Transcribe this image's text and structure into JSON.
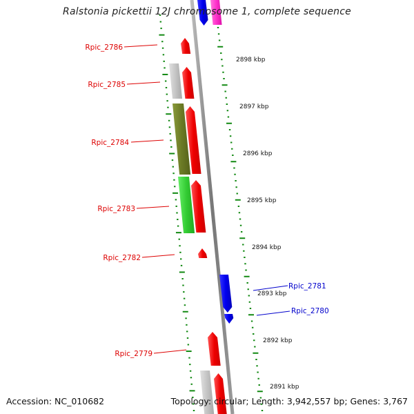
{
  "title": "Ralstonia pickettii 12J chromosome 1, complete sequence",
  "accession": "Accession: NC_010682",
  "summary": "Topology: circular; Length: 3,942,557 bp; Genes: 3,767",
  "colors": {
    "forward_gene": "#ee0000",
    "reverse_gene": "#0000ee",
    "pink_gene": "#ff33cc",
    "grey_gene": "#c0c0c0",
    "olive_gene": "#6b7a25",
    "green_gene": "#33cc33",
    "tick": "#118811",
    "backbone": "#888888",
    "label_red": "#dd0000",
    "label_blue": "#0000cc"
  },
  "kbp_ticks": [
    {
      "label": "2898 kbp"
    },
    {
      "label": "2897 kbp"
    },
    {
      "label": "2896 kbp"
    },
    {
      "label": "2895 kbp"
    },
    {
      "label": "2894 kbp"
    },
    {
      "label": "2893 kbp"
    },
    {
      "label": "2892 kbp"
    },
    {
      "label": "2891 kbp"
    }
  ],
  "gene_labels": [
    {
      "name": "Rpic_2786",
      "color": "label_red"
    },
    {
      "name": "Rpic_2785",
      "color": "label_red"
    },
    {
      "name": "Rpic_2784",
      "color": "label_red"
    },
    {
      "name": "Rpic_2783",
      "color": "label_red"
    },
    {
      "name": "Rpic_2782",
      "color": "label_red"
    },
    {
      "name": "Rpic_2781",
      "color": "label_blue"
    },
    {
      "name": "Rpic_2780",
      "color": "label_blue"
    },
    {
      "name": "Rpic_2779",
      "color": "label_red"
    }
  ]
}
